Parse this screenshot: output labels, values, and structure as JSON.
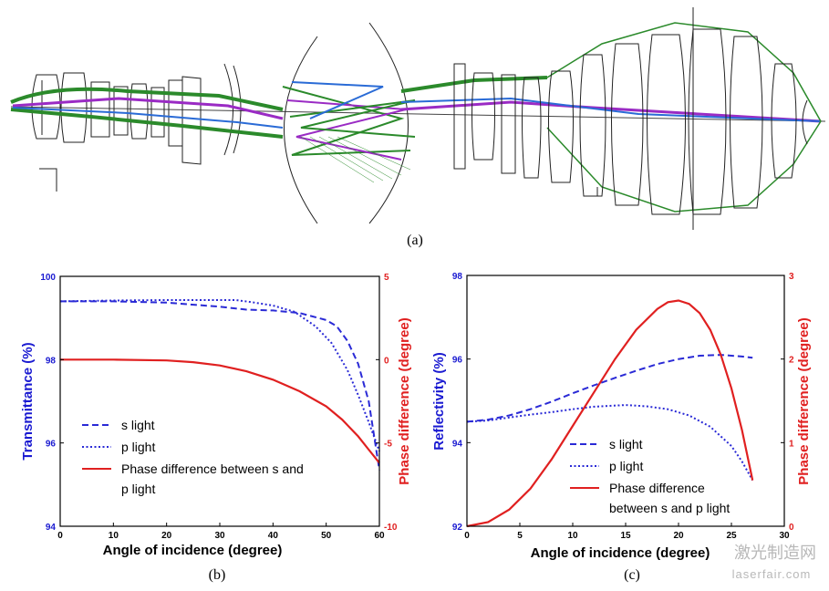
{
  "figure": {
    "panel_a_label": "(a)",
    "panel_b_label": "(b)",
    "panel_c_label": "(c)",
    "watermark_cn": "激光制造网",
    "watermark_url": "laserfair.com"
  },
  "chart_data": [
    {
      "panel": "b",
      "type": "line",
      "xlabel": "Angle of incidence (degree)",
      "ylabel": "Transmittance (%)",
      "y2label": "Phase difference (degree)",
      "xlim": [
        0,
        60
      ],
      "ylim": [
        94,
        100
      ],
      "y2lim": [
        -10,
        5
      ],
      "xticks": [
        "0",
        "10",
        "20",
        "30",
        "40",
        "50",
        "60"
      ],
      "yticks": [
        "94",
        "96",
        "98",
        "100"
      ],
      "y2ticks": [
        "-10",
        "-5",
        "0",
        "5"
      ],
      "colors": {
        "left_axis": "#1a1ad1",
        "right_axis": "#e02020",
        "frame": "#000000"
      },
      "legend_position": "bottom-left",
      "grid": false,
      "series": [
        {
          "name": "s light",
          "axis": "left",
          "style": "dashed",
          "color": "#2a2ad6",
          "x": [
            0,
            10,
            20,
            30,
            35,
            40,
            45,
            50,
            52,
            54,
            56,
            58,
            60
          ],
          "y": [
            99.4,
            99.4,
            99.37,
            99.27,
            99.2,
            99.18,
            99.12,
            98.95,
            98.8,
            98.45,
            97.9,
            97.0,
            95.35
          ]
        },
        {
          "name": "p light",
          "axis": "left",
          "style": "dotted",
          "color": "#2a2ad6",
          "x": [
            0,
            10,
            20,
            30,
            33,
            36,
            40,
            44,
            48,
            51,
            54,
            56,
            58,
            60
          ],
          "y": [
            99.4,
            99.42,
            99.43,
            99.43,
            99.43,
            99.38,
            99.3,
            99.15,
            98.8,
            98.4,
            97.75,
            97.15,
            96.5,
            95.8
          ]
        },
        {
          "name": "Phase difference between s and p light",
          "axis": "right",
          "style": "solid",
          "color": "#e02020",
          "x": [
            0,
            10,
            20,
            25,
            30,
            35,
            40,
            45,
            50,
            53,
            56,
            58,
            60
          ],
          "y": [
            0,
            0,
            -0.05,
            -0.15,
            -0.35,
            -0.7,
            -1.2,
            -1.9,
            -2.8,
            -3.6,
            -4.6,
            -5.4,
            -6.2
          ]
        }
      ]
    },
    {
      "panel": "c",
      "type": "line",
      "xlabel": "Angle of incidence (degree)",
      "ylabel": "Reflectivity (%)",
      "y2label": "Phase difference (degree)",
      "xlim": [
        0,
        30
      ],
      "ylim": [
        92,
        98
      ],
      "y2lim": [
        0,
        3
      ],
      "xticks": [
        "0",
        "5",
        "10",
        "15",
        "20",
        "25",
        "30"
      ],
      "yticks": [
        "92",
        "94",
        "96",
        "98"
      ],
      "y2ticks": [
        "0",
        "1",
        "2",
        "3"
      ],
      "colors": {
        "left_axis": "#1a1ad1",
        "right_axis": "#e02020",
        "frame": "#000000"
      },
      "legend_position": "bottom-right",
      "grid": false,
      "series": [
        {
          "name": "s light",
          "axis": "left",
          "style": "dashed",
          "color": "#2a2ad6",
          "x": [
            0,
            2,
            4,
            6,
            8,
            10,
            12,
            14,
            16,
            18,
            20,
            22,
            24,
            26,
            27
          ],
          "y": [
            94.5,
            94.55,
            94.65,
            94.8,
            94.98,
            95.18,
            95.37,
            95.55,
            95.72,
            95.88,
            96.0,
            96.08,
            96.1,
            96.06,
            96.03
          ]
        },
        {
          "name": "p light",
          "axis": "left",
          "style": "dotted",
          "color": "#2a2ad6",
          "x": [
            0,
            2,
            4,
            6,
            8,
            10,
            12,
            15,
            17,
            19,
            21,
            23,
            25,
            26,
            27
          ],
          "y": [
            94.5,
            94.53,
            94.6,
            94.67,
            94.73,
            94.8,
            94.86,
            94.9,
            94.87,
            94.8,
            94.65,
            94.38,
            93.92,
            93.55,
            93.1
          ]
        },
        {
          "name": "Phase difference between s and p light",
          "axis": "right",
          "style": "solid",
          "color": "#e02020",
          "x": [
            0,
            2,
            4,
            6,
            8,
            10,
            12,
            14,
            16,
            18,
            19,
            20,
            21,
            22,
            23,
            24,
            25,
            26,
            27
          ],
          "y": [
            0,
            0.05,
            0.2,
            0.45,
            0.8,
            1.2,
            1.6,
            2.0,
            2.35,
            2.6,
            2.68,
            2.7,
            2.66,
            2.55,
            2.35,
            2.05,
            1.65,
            1.15,
            0.55
          ]
        }
      ]
    }
  ]
}
